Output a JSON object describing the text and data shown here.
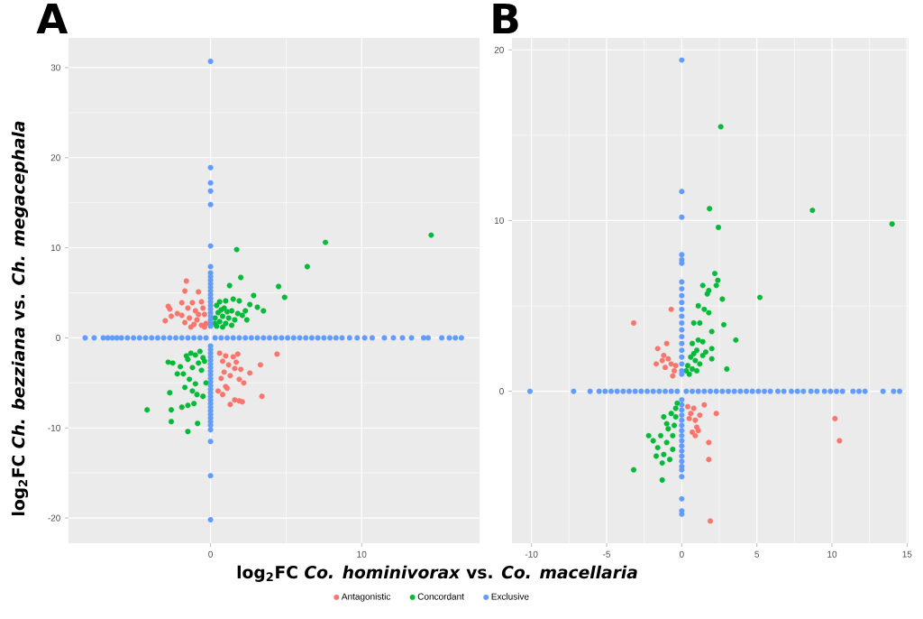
{
  "chart_data": [
    {
      "type": "scatter",
      "title": "A",
      "xlabel": "log$_{2}$FC *Co. hominivorax* vs. *Co. macellaria*",
      "ylabel": "log$_{2}$FC *Ch. bezziana* vs. *Ch. megacephala*",
      "xlim": [
        -9.4,
        17.8
      ],
      "ylim": [
        -22.8,
        33.3
      ],
      "xticks": [
        0,
        10
      ],
      "yticks": [
        -20,
        -10,
        0,
        10,
        20,
        30
      ],
      "grid": true,
      "legend": "bottom",
      "marker": "circle",
      "series": [
        {
          "name": "Antagonistic",
          "color": "#f8766d",
          "x": [
            -1.6,
            -1.7,
            -0.8,
            -2.8,
            -3.0,
            -2.6,
            -2.7,
            -1.9,
            -1.5,
            -1.2,
            -0.6,
            -1.0,
            -0.5,
            -1.4,
            -0.9,
            -0.4,
            -1.7,
            -1.1,
            -0.6,
            -0.3,
            -2.2,
            -1.9,
            -0.8,
            -1.3,
            -0.4,
            4.4,
            3.3,
            3.4,
            2.6,
            1.3,
            0.6,
            1.0,
            1.5,
            1.8,
            0.8,
            1.2,
            1.6,
            0.9,
            1.3,
            1.9,
            2.2,
            1.0,
            1.1,
            0.5,
            0.8,
            1.6,
            1.9,
            2.1,
            0.7,
            1.7,
            2.0
          ],
          "values": [
            6.3,
            5.2,
            5.1,
            3.5,
            1.9,
            2.4,
            3.2,
            2.5,
            3.3,
            3.9,
            4.0,
            3.0,
            3.3,
            2.2,
            2.0,
            2.6,
            1.7,
            1.5,
            1.4,
            1.6,
            2.7,
            3.9,
            2.6,
            1.2,
            1.2,
            -1.8,
            -3.0,
            -6.5,
            -3.9,
            -7.4,
            -1.7,
            -2.0,
            -2.1,
            -1.8,
            -2.6,
            -3.0,
            -3.4,
            -3.8,
            -4.2,
            -4.6,
            -5.0,
            -5.4,
            -5.6,
            -5.9,
            -6.3,
            -6.9,
            -7.0,
            -7.1,
            -4.5,
            -2.7,
            -3.5
          ]
        },
        {
          "name": "Concordant",
          "color": "#00ba38",
          "x": [
            1.73,
            7.6,
            14.6,
            6.4,
            2.0,
            4.5,
            1.26,
            4.9,
            2.85,
            3.5,
            3.1,
            2.6,
            2.3,
            1.5,
            1.0,
            0.6,
            0.4,
            0.9,
            1.4,
            1.8,
            2.1,
            0.5,
            0.8,
            1.2,
            1.6,
            0.3,
            0.6,
            1.0,
            1.4,
            0.4,
            0.8,
            1.9,
            2.4,
            0.3,
            1.1,
            0.7,
            -4.2,
            -2.7,
            -2.6,
            -2.6,
            -1.5,
            -0.86,
            -1.9,
            -1.5,
            -1.1,
            -2.8,
            -2.5,
            -2.0,
            -1.8,
            -1.6,
            -1.3,
            -1.0,
            -0.7,
            -0.5,
            -0.8,
            -1.2,
            -0.6,
            -1.4,
            -1.0,
            -0.3,
            -1.7,
            -1.2,
            -0.9,
            -0.5,
            -0.4,
            -1.5,
            -2.2
          ],
          "values": [
            9.8,
            10.6,
            11.4,
            7.9,
            6.7,
            5.7,
            5.8,
            4.5,
            4.7,
            3.0,
            3.4,
            3.7,
            3.0,
            4.3,
            4.1,
            4.0,
            3.6,
            3.3,
            3.0,
            2.7,
            2.5,
            2.8,
            2.4,
            2.2,
            2.0,
            2.2,
            1.8,
            1.6,
            1.4,
            1.3,
            1.2,
            4.1,
            2.0,
            1.6,
            2.9,
            3.1,
            -8.0,
            -6.1,
            -8.0,
            -9.3,
            -10.4,
            -9.5,
            -7.7,
            -7.5,
            -7.3,
            -2.7,
            -2.8,
            -3.2,
            -4.0,
            -2.0,
            -1.7,
            -1.9,
            -1.5,
            -2.2,
            -2.8,
            -3.3,
            -3.6,
            -4.6,
            -5.1,
            -5.0,
            -5.5,
            -5.9,
            -6.3,
            -6.5,
            -2.6,
            -2.4,
            -4.0
          ]
        },
        {
          "name": "Exclusive",
          "color": "#619cff",
          "x": [
            0,
            0,
            0,
            0,
            0,
            0,
            0,
            0,
            0,
            0,
            0,
            0,
            0,
            0,
            0,
            0,
            0,
            0,
            0,
            0,
            0,
            0,
            0,
            0,
            0,
            0,
            0,
            0,
            0,
            0,
            0,
            0,
            0,
            0,
            0,
            0,
            0,
            0,
            0,
            0,
            0,
            0,
            0,
            0,
            0,
            0,
            0,
            0,
            0,
            0,
            -8.3,
            -7.7,
            -7.1,
            -6.8,
            -6.5,
            -6.2,
            -5.9,
            -5.5,
            -5.1,
            -4.7,
            -4.3,
            -3.9,
            -3.5,
            -3.1,
            -2.7,
            -2.3,
            -1.9,
            -1.5,
            -1.1,
            -0.7,
            -0.3,
            0.3,
            0.7,
            1.1,
            1.5,
            1.9,
            2.3,
            2.7,
            3.1,
            3.5,
            3.9,
            4.3,
            4.7,
            5.1,
            5.5,
            5.9,
            6.3,
            6.7,
            7.1,
            7.5,
            7.9,
            8.3,
            8.7,
            9.2,
            9.7,
            10.2,
            10.7,
            11.5,
            12.1,
            12.7,
            13.3,
            14.1,
            14.4,
            15.3,
            15.8,
            16.2,
            16.6
          ],
          "values": [
            30.7,
            18.9,
            17.2,
            16.3,
            14.8,
            10.2,
            7.9,
            7.2,
            6.8,
            6.4,
            6.0,
            5.6,
            5.2,
            4.8,
            4.4,
            4.0,
            3.6,
            3.2,
            2.8,
            2.4,
            2.0,
            1.6,
            1.3,
            -0.9,
            -1.3,
            -1.7,
            -2.1,
            -2.5,
            -2.9,
            -3.3,
            -3.7,
            -4.1,
            -4.5,
            -4.9,
            -5.3,
            -5.7,
            -6.1,
            -6.5,
            -6.9,
            -7.3,
            -7.7,
            -8.1,
            -8.5,
            -8.9,
            -9.3,
            -9.7,
            -10.2,
            -11.5,
            -15.3,
            -20.2,
            0,
            0,
            0,
            0,
            0,
            0,
            0,
            0,
            0,
            0,
            0,
            0,
            0,
            0,
            0,
            0,
            0,
            0,
            0,
            0,
            0,
            0,
            0,
            0,
            0,
            0,
            0,
            0,
            0,
            0,
            0,
            0,
            0,
            0,
            0,
            0,
            0,
            0,
            0,
            0,
            0,
            0,
            0,
            0,
            0,
            0,
            0,
            0,
            0,
            0,
            0,
            0,
            0,
            0,
            0,
            0,
            0
          ]
        }
      ]
    },
    {
      "type": "scatter",
      "title": "B",
      "xlim": [
        -11.3,
        15.1
      ],
      "ylim": [
        -8.9,
        20.7
      ],
      "xticks": [
        -10,
        -5,
        0,
        5,
        10,
        15
      ],
      "yticks": [
        0,
        10,
        20
      ],
      "grid": true,
      "marker": "circle",
      "series": [
        {
          "color": "#f8766d",
          "x": [
            -3.2,
            -0.7,
            -1.6,
            -1.0,
            -1.7,
            -1.2,
            -0.9,
            -0.7,
            -1.1,
            -0.5,
            -0.6,
            -1.3,
            -0.4,
            1.5,
            2.3,
            1.8,
            1.8,
            1.9,
            10.2,
            10.5,
            0.4,
            0.8,
            1.2,
            0.6,
            0.9,
            0.5,
            1.0,
            0.7,
            0.9,
            1.1
          ],
          "values": [
            4.0,
            4.8,
            2.5,
            2.8,
            1.6,
            2.1,
            1.9,
            1.6,
            1.4,
            1.2,
            0.9,
            1.8,
            1.5,
            -0.8,
            -1.3,
            -3.0,
            -4.0,
            -7.6,
            -1.6,
            -2.9,
            -0.9,
            -1.0,
            -1.4,
            -1.3,
            -1.7,
            -1.6,
            -2.1,
            -2.4,
            -2.6,
            -2.3
          ]
        },
        {
          "color": "#00ba38",
          "x": [
            2.6,
            1.85,
            2.44,
            8.7,
            14.0,
            5.2,
            3.6,
            3.0,
            2.8,
            2.7,
            2.2,
            2.4,
            2.3,
            1.4,
            1.7,
            1.8,
            2.0,
            0.8,
            1.2,
            1.1,
            1.5,
            1.8,
            2.0,
            2.0,
            1.4,
            1.1,
            0.7,
            1.0,
            1.4,
            0.6,
            0.9,
            1.2,
            0.4,
            0.7,
            1.0,
            0.5,
            0.3,
            0.8,
            1.6,
            -3.2,
            -1.3,
            -2.2,
            -1.9,
            -1.6,
            -1.2,
            -1.3,
            -0.8,
            -1.0,
            -0.6,
            -1.4,
            -0.9,
            -0.5,
            -1.2,
            -0.7,
            -0.4,
            -0.3,
            -1.0,
            -0.6,
            -1.7,
            -0.4
          ],
          "values": [
            15.5,
            10.7,
            9.6,
            10.6,
            9.8,
            5.5,
            3.0,
            1.3,
            3.9,
            5.4,
            6.9,
            6.5,
            6.2,
            6.2,
            5.7,
            5.9,
            3.5,
            4.0,
            4.0,
            5.0,
            4.8,
            4.6,
            2.5,
            1.9,
            2.9,
            3.0,
            2.8,
            2.4,
            2.1,
            2.0,
            1.8,
            1.6,
            1.5,
            1.3,
            1.2,
            1.0,
            1.2,
            2.2,
            2.3,
            -4.6,
            -5.2,
            -2.6,
            -2.9,
            -3.3,
            -3.7,
            -4.2,
            -4.0,
            -3.0,
            -3.4,
            -2.6,
            -2.2,
            -2.0,
            -1.5,
            -1.3,
            -1.0,
            -0.7,
            -1.9,
            -2.6,
            -3.8,
            -1.5
          ]
        },
        {
          "color": "#619cff",
          "x": [
            0,
            0,
            0,
            0,
            0,
            0,
            0,
            0,
            0,
            0,
            0,
            0,
            0,
            0,
            0,
            0,
            0,
            0,
            0,
            0,
            0,
            0,
            0,
            0,
            0,
            0,
            0,
            0,
            0,
            0,
            0,
            0,
            0,
            0,
            0,
            0,
            0,
            0,
            0,
            0,
            -10.1,
            -7.2,
            -6.1,
            -5.5,
            -5.1,
            -4.7,
            -4.3,
            -3.9,
            -3.5,
            -3.1,
            -2.7,
            -2.3,
            -1.9,
            -1.5,
            -1.1,
            -0.7,
            -0.3,
            0.3,
            0.7,
            1.1,
            1.5,
            1.9,
            2.3,
            2.7,
            3.1,
            3.5,
            3.9,
            4.3,
            4.7,
            5.1,
            5.5,
            5.9,
            6.4,
            6.8,
            7.3,
            7.7,
            8.1,
            8.6,
            9.0,
            9.5,
            9.9,
            10.3,
            10.7,
            11.4,
            11.8,
            12.2,
            13.4,
            14.1,
            14.5
          ],
          "values": [
            19.4,
            11.7,
            10.2,
            8.0,
            7.7,
            7.5,
            6.4,
            6.0,
            5.6,
            5.2,
            4.8,
            4.4,
            4.0,
            3.6,
            3.2,
            2.8,
            2.4,
            2.0,
            1.6,
            1.2,
            1.0,
            -0.5,
            -0.8,
            -1.1,
            -1.4,
            -1.7,
            -2.0,
            -2.3,
            -2.6,
            -2.9,
            -3.2,
            -3.5,
            -3.8,
            -4.1,
            -4.4,
            -4.6,
            -5.0,
            -6.3,
            -7.0,
            -7.2,
            0,
            0,
            0,
            0,
            0,
            0,
            0,
            0,
            0,
            0,
            0,
            0,
            0,
            0,
            0,
            0,
            0,
            0,
            0,
            0,
            0,
            0,
            0,
            0,
            0,
            0,
            0,
            0,
            0,
            0,
            0,
            0,
            0,
            0,
            0,
            0,
            0,
            0,
            0,
            0,
            0,
            0,
            0,
            0,
            0,
            0,
            0,
            0,
            0
          ]
        }
      ]
    }
  ]
}
